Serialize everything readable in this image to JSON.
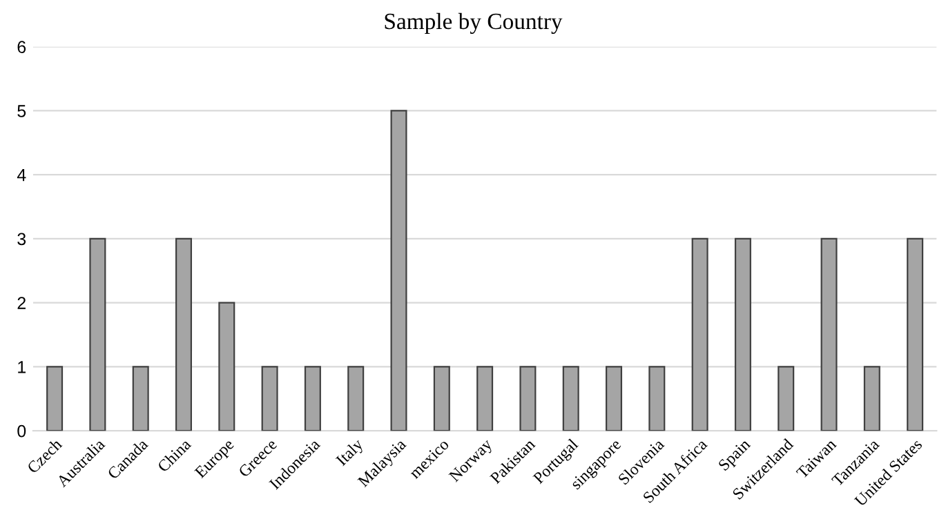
{
  "chart_data": {
    "type": "bar",
    "title": "Sample by Country",
    "categories": [
      "Czech",
      "Australia",
      "Canada",
      "China",
      "Europe",
      "Greece",
      "Indonesia",
      "Italy",
      "Malaysia",
      "mexico",
      "Norway",
      "Pakistan",
      "Portugal",
      "singapore",
      "Slovenia",
      "South Africa",
      "Spain",
      "Switzerland",
      "Taiwan",
      "Tanzania",
      "United States"
    ],
    "values": [
      1,
      3,
      1,
      3,
      2,
      1,
      1,
      1,
      5,
      1,
      1,
      1,
      1,
      1,
      1,
      3,
      3,
      1,
      3,
      1,
      3
    ],
    "color": "#a5a5a5",
    "ylim": [
      0,
      6
    ],
    "yticks": [
      0,
      1,
      2,
      3,
      4,
      5,
      6
    ],
    "grid": "y",
    "legend": false
  }
}
